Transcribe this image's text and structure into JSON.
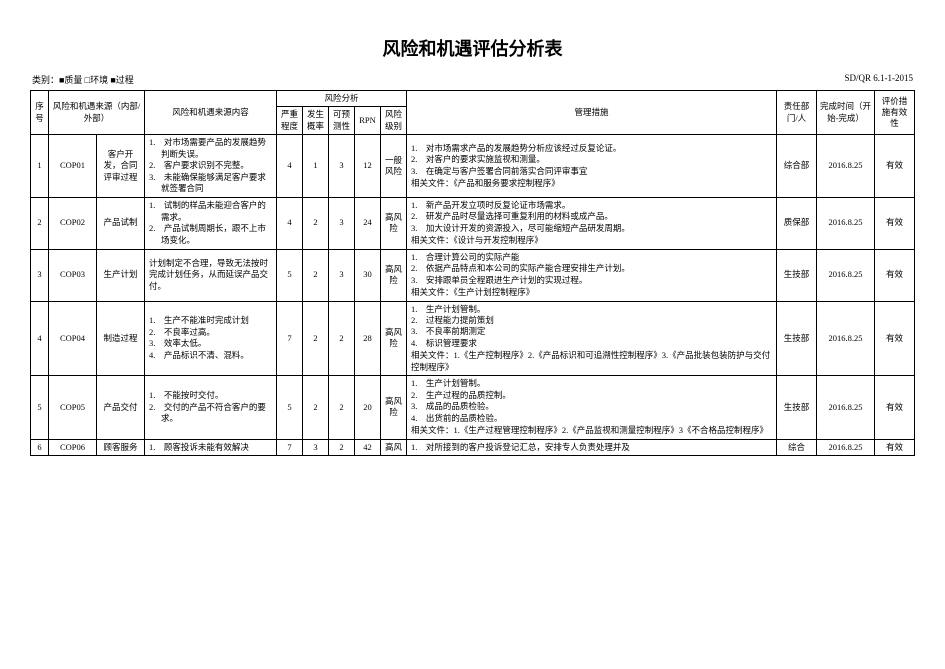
{
  "title": "风险和机遇评估分析表",
  "categoryLabel": "类别：■质量 □环境 ■过程",
  "docNo": "SD/QR 6.1-1-2015",
  "columns": {
    "seq": "序号",
    "source": "风险和机遇来源（内部/外部）",
    "desc": "风险和机遇来源内容",
    "analysisGroup": "风险分析",
    "severity": "严重程度",
    "probability": "发生概率",
    "predict": "可预测性",
    "rpn": "RPN",
    "level": "风险级别",
    "measures": "管理措施",
    "dept": "责任部门/人",
    "date": "完成时间（开始-完成）",
    "eff": "评价措施有效性"
  },
  "rows": [
    {
      "seq": "1",
      "code": "COP01",
      "src": "客户开发，合同评审过程",
      "desc": [
        "对市场需要产品的发展趋势判断失误。",
        "客户要求识别不完整。",
        "未能确保能够满足客户要求就签署合同"
      ],
      "sev": "4",
      "prob": "1",
      "pred": "3",
      "rpn": "12",
      "lvl": "一般风险",
      "measures": [
        "对市场需求产品的发展趋势分析应该经过反复论证。",
        "对客户的要求实施监视和测量。",
        "在确定与客户签署合同前落实合同评审事宜"
      ],
      "related": "相关文件：《产品和服务要求控制程序》",
      "dept": "综合部",
      "date": "2016.8.25",
      "eff": "有效"
    },
    {
      "seq": "2",
      "code": "COP02",
      "src": "产品试制",
      "desc": [
        "试制的样品未能迎合客户的需求。",
        "产品试制周期长，跟不上市场变化。"
      ],
      "sev": "4",
      "prob": "2",
      "pred": "3",
      "rpn": "24",
      "lvl": "高风险",
      "measures": [
        "新产品开发立项时反复论证市场需求。",
        "研发产品时尽量选择可重复利用的材料或成产品。",
        "加大设计开发的资源投入，尽可能缩短产品研发周期。"
      ],
      "related": "相关文件：《设计与开发控制程序》",
      "dept": "质保部",
      "date": "2016.8.25",
      "eff": "有效"
    },
    {
      "seq": "3",
      "code": "COP03",
      "src": "生产计划",
      "desc_single": "计划制定不合理，导致无法按时完成计划任务，从而延误产品交付。",
      "sev": "5",
      "prob": "2",
      "pred": "3",
      "rpn": "30",
      "lvl": "高风险",
      "measures": [
        "合理计算公司的实际产能",
        "依据产品特点和本公司的实际产能合理安排生产计划。",
        "安排跟单员全程跟进生产计划的实现过程。"
      ],
      "related": "相关文件：《生产计划控制程序》",
      "dept": "生技部",
      "date": "2016.8.25",
      "eff": "有效"
    },
    {
      "seq": "4",
      "code": "COP04",
      "src": "制造过程",
      "desc": [
        "生产不能准时完成计划",
        "不良率过高。",
        "效率太低。",
        "产品标识不清、混料。"
      ],
      "sev": "7",
      "prob": "2",
      "pred": "2",
      "rpn": "28",
      "lvl": "高风险",
      "measures": [
        "生产计划管制。",
        "过程能力提前策划",
        "不良率前期测定",
        "标识管理要求"
      ],
      "related": "相关文件：1.《生产控制程序》2.《产品标识和可追溯性控制程序》3.《产品批装包装防护与交付控制程序》",
      "dept": "生技部",
      "date": "2016.8.25",
      "eff": "有效"
    },
    {
      "seq": "5",
      "code": "COP05",
      "src": "产品交付",
      "desc": [
        "不能按时交付。",
        "交付的产品不符合客户的要求。"
      ],
      "sev": "5",
      "prob": "2",
      "pred": "2",
      "rpn": "20",
      "lvl": "高风险",
      "measures": [
        "生产计划管制。",
        "生产过程的品质控制。",
        "成品的品质检验。",
        "出货前的品质检验。"
      ],
      "related": "相关文件：1.《生产过程管理控制程序》2.《产品监视和测量控制程序》3《不合格品控制程序》",
      "dept": "生技部",
      "date": "2016.8.25",
      "eff": "有效"
    },
    {
      "seq": "6",
      "code": "COP06",
      "src": "顾客服务",
      "desc": [
        "顾客投诉未能有效解决"
      ],
      "sev": "7",
      "prob": "3",
      "pred": "2",
      "rpn": "42",
      "lvl": "高风",
      "measures": [
        "对所接到的客户投诉登记汇总，安排专人负责处理并及"
      ],
      "related": "",
      "dept": "综合",
      "date": "2016.8.25",
      "eff": "有效"
    }
  ]
}
